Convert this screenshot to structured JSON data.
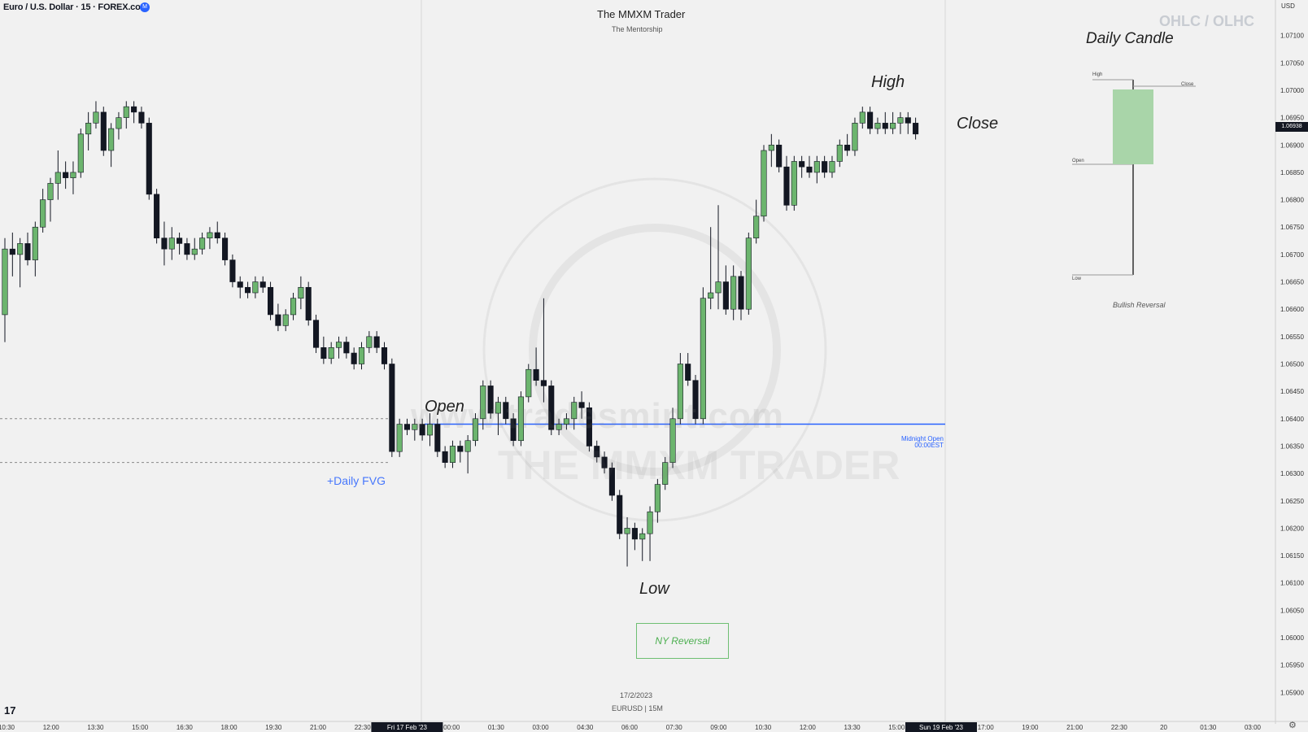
{
  "header": {
    "symbol": "Euro / U.S. Dollar · 15 · FOREX.com",
    "live_badge": "M",
    "brand": "The MMXM Trader",
    "brand_sub": "The Mentorship",
    "ohlc_title": "OHLC / OLHC",
    "daily_candle_title": "Daily Candle",
    "currency": "USD"
  },
  "annotations": {
    "open": "Open",
    "high": "High",
    "low": "Low",
    "close": "Close",
    "daily_fvg": "+Daily FVG",
    "midnight_open_1": "Midnight Open",
    "midnight_open_2": "00:00EST",
    "ny_reversal": "NY Reversal"
  },
  "daily_candle": {
    "high": "High",
    "close": "Close",
    "open": "Open",
    "low": "Low",
    "caption": "Bullish Reversal"
  },
  "footer": {
    "date": "17/2/2023",
    "symbol_tf": "EURUSD | 15M"
  },
  "watermark": {
    "url": "www.tradesmint.com",
    "name": "THE MMXM TRADER"
  },
  "current_price_label": "1.06938",
  "colors": {
    "bull": "#6cb56e",
    "bear": "#131722",
    "midnight_line": "#2962ff",
    "ny_box": "#6fbf73"
  },
  "chart_data": {
    "type": "candlestick",
    "symbol": "EURUSD",
    "interval": "15",
    "ylim": [
      1.0585,
      1.0715
    ],
    "y_ticks": [
      "1.07100",
      "1.07050",
      "1.07000",
      "1.06950",
      "1.06900",
      "1.06850",
      "1.06800",
      "1.06750",
      "1.06700",
      "1.06650",
      "1.06600",
      "1.06550",
      "1.06500",
      "1.06450",
      "1.06400",
      "1.06350",
      "1.06300",
      "1.06250",
      "1.06200",
      "1.06150",
      "1.06100",
      "1.06050",
      "1.06000",
      "1.05950",
      "1.05900"
    ],
    "x_ticks": [
      "10:30",
      "12:00",
      "13:30",
      "15:00",
      "16:30",
      "18:00",
      "19:30",
      "21:00",
      "22:30",
      "Fri 17 Feb '23",
      "00:00",
      "01:30",
      "03:00",
      "04:30",
      "06:00",
      "07:30",
      "09:00",
      "10:30",
      "12:00",
      "13:30",
      "15:00",
      "Sun 19 Feb '23",
      "17:00",
      "19:00",
      "21:00",
      "22:30",
      "20",
      "01:30",
      "03:00"
    ],
    "midnight_open": 1.0639,
    "daily_fvg_level": 1.0632,
    "series": [
      {
        "ohlc": [
          [
            1.0659,
            1.0673,
            1.0654,
            1.0671
          ],
          [
            1.0671,
            1.0674,
            1.0666,
            1.067
          ],
          [
            1.067,
            1.0673,
            1.0664,
            1.0672
          ],
          [
            1.0672,
            1.0674,
            1.0668,
            1.0669
          ],
          [
            1.0669,
            1.0676,
            1.0666,
            1.0675
          ],
          [
            1.0675,
            1.0682,
            1.0674,
            1.068
          ],
          [
            1.068,
            1.0684,
            1.0676,
            1.0683
          ],
          [
            1.0683,
            1.0689,
            1.068,
            1.0685
          ],
          [
            1.0685,
            1.0687,
            1.0682,
            1.0684
          ],
          [
            1.0684,
            1.0687,
            1.0681,
            1.0685
          ],
          [
            1.0685,
            1.0693,
            1.0684,
            1.0692
          ],
          [
            1.0692,
            1.0696,
            1.0689,
            1.0694
          ],
          [
            1.0694,
            1.0698,
            1.0693,
            1.0696
          ],
          [
            1.0696,
            1.0697,
            1.0688,
            1.0689
          ],
          [
            1.0689,
            1.0694,
            1.0686,
            1.0693
          ],
          [
            1.0693,
            1.0696,
            1.0691,
            1.0695
          ],
          [
            1.0695,
            1.0698,
            1.0693,
            1.0697
          ],
          [
            1.0697,
            1.0698,
            1.0694,
            1.0696
          ],
          [
            1.0696,
            1.0697,
            1.0693,
            1.0694
          ],
          [
            1.0694,
            1.0695,
            1.068,
            1.0681
          ],
          [
            1.0681,
            1.0682,
            1.0672,
            1.0673
          ],
          [
            1.0673,
            1.0676,
            1.0668,
            1.0671
          ],
          [
            1.0671,
            1.0675,
            1.0669,
            1.0673
          ],
          [
            1.0673,
            1.0674,
            1.067,
            1.0672
          ],
          [
            1.0672,
            1.0673,
            1.0669,
            1.067
          ],
          [
            1.067,
            1.0673,
            1.0669,
            1.0671
          ],
          [
            1.0671,
            1.0674,
            1.067,
            1.0673
          ],
          [
            1.0673,
            1.0675,
            1.0671,
            1.0674
          ],
          [
            1.0674,
            1.0676,
            1.0672,
            1.0673
          ],
          [
            1.0673,
            1.0674,
            1.0668,
            1.0669
          ],
          [
            1.0669,
            1.067,
            1.0664,
            1.0665
          ],
          [
            1.0665,
            1.0666,
            1.0662,
            1.0664
          ],
          [
            1.0664,
            1.0665,
            1.0662,
            1.0663
          ],
          [
            1.0663,
            1.0666,
            1.0662,
            1.0665
          ],
          [
            1.0665,
            1.0666,
            1.0663,
            1.0664
          ],
          [
            1.0664,
            1.0665,
            1.0658,
            1.0659
          ],
          [
            1.0659,
            1.0661,
            1.0656,
            1.0657
          ],
          [
            1.0657,
            1.066,
            1.0656,
            1.0659
          ],
          [
            1.0659,
            1.0663,
            1.0658,
            1.0662
          ],
          [
            1.0662,
            1.0666,
            1.066,
            1.0664
          ],
          [
            1.0664,
            1.0665,
            1.0657,
            1.0658
          ],
          [
            1.0658,
            1.0659,
            1.0652,
            1.0653
          ],
          [
            1.0653,
            1.0655,
            1.065,
            1.0651
          ],
          [
            1.0651,
            1.0654,
            1.065,
            1.0653
          ],
          [
            1.0653,
            1.0655,
            1.0651,
            1.0654
          ],
          [
            1.0654,
            1.0655,
            1.0651,
            1.0652
          ],
          [
            1.0652,
            1.0653,
            1.0649,
            1.065
          ],
          [
            1.065,
            1.0654,
            1.0649,
            1.0653
          ],
          [
            1.0653,
            1.0656,
            1.0652,
            1.0655
          ],
          [
            1.0655,
            1.0656,
            1.0652,
            1.0653
          ],
          [
            1.0653,
            1.0654,
            1.0649,
            1.065
          ],
          [
            1.065,
            1.0651,
            1.0633,
            1.0634
          ],
          [
            1.0634,
            1.064,
            1.0633,
            1.0639
          ],
          [
            1.0639,
            1.064,
            1.0637,
            1.0638
          ],
          [
            1.0638,
            1.064,
            1.0636,
            1.0639
          ],
          [
            1.0639,
            1.064,
            1.0636,
            1.0637
          ],
          [
            1.0637,
            1.0641,
            1.0635,
            1.0639
          ],
          [
            1.0639,
            1.064,
            1.0633,
            1.0634
          ],
          [
            1.0634,
            1.0635,
            1.0631,
            1.0632
          ],
          [
            1.0632,
            1.0636,
            1.0631,
            1.0635
          ],
          [
            1.0635,
            1.0636,
            1.0632,
            1.0634
          ],
          [
            1.0634,
            1.0637,
            1.063,
            1.0636
          ],
          [
            1.0636,
            1.0641,
            1.0635,
            1.064
          ],
          [
            1.064,
            1.0647,
            1.0638,
            1.0646
          ],
          [
            1.0646,
            1.0647,
            1.064,
            1.0641
          ],
          [
            1.0641,
            1.0644,
            1.0637,
            1.0643
          ],
          [
            1.0643,
            1.0644,
            1.0639,
            1.064
          ],
          [
            1.064,
            1.0641,
            1.0635,
            1.0636
          ],
          [
            1.0636,
            1.0645,
            1.0635,
            1.0644
          ],
          [
            1.0644,
            1.065,
            1.0643,
            1.0649
          ],
          [
            1.0649,
            1.0653,
            1.0646,
            1.0647
          ],
          [
            1.0647,
            1.0662,
            1.0643,
            1.0646
          ],
          [
            1.0646,
            1.0647,
            1.0637,
            1.0638
          ],
          [
            1.0638,
            1.064,
            1.0637,
            1.0639
          ],
          [
            1.0639,
            1.0641,
            1.0638,
            1.064
          ],
          [
            1.064,
            1.0644,
            1.0638,
            1.0643
          ],
          [
            1.0643,
            1.0645,
            1.064,
            1.0642
          ],
          [
            1.0642,
            1.0643,
            1.0634,
            1.0635
          ],
          [
            1.0635,
            1.0636,
            1.0632,
            1.0633
          ],
          [
            1.0633,
            1.0634,
            1.063,
            1.0631
          ],
          [
            1.0631,
            1.0632,
            1.0625,
            1.0626
          ],
          [
            1.0626,
            1.0627,
            1.0618,
            1.0619
          ],
          [
            1.0619,
            1.0622,
            1.0613,
            1.062
          ],
          [
            1.062,
            1.0621,
            1.0616,
            1.0618
          ],
          [
            1.0618,
            1.062,
            1.0614,
            1.0619
          ],
          [
            1.0619,
            1.0624,
            1.0614,
            1.0623
          ],
          [
            1.0623,
            1.0629,
            1.0621,
            1.0628
          ],
          [
            1.0628,
            1.0633,
            1.0627,
            1.0632
          ],
          [
            1.0632,
            1.0642,
            1.0631,
            1.064
          ],
          [
            1.064,
            1.0652,
            1.0639,
            1.065
          ],
          [
            1.065,
            1.0652,
            1.0646,
            1.0647
          ],
          [
            1.0647,
            1.0648,
            1.0639,
            1.064
          ],
          [
            1.064,
            1.0664,
            1.0639,
            1.0662
          ],
          [
            1.0662,
            1.0675,
            1.066,
            1.0663
          ],
          [
            1.0663,
            1.0679,
            1.066,
            1.0665
          ],
          [
            1.0665,
            1.0668,
            1.0659,
            1.066
          ],
          [
            1.066,
            1.0668,
            1.0658,
            1.0666
          ],
          [
            1.0666,
            1.0667,
            1.0658,
            1.066
          ],
          [
            1.066,
            1.0674,
            1.0659,
            1.0673
          ],
          [
            1.0673,
            1.068,
            1.0672,
            1.0677
          ],
          [
            1.0677,
            1.069,
            1.0676,
            1.0689
          ],
          [
            1.0689,
            1.0692,
            1.0686,
            1.069
          ],
          [
            1.069,
            1.0691,
            1.0685,
            1.0686
          ],
          [
            1.0686,
            1.0688,
            1.0678,
            1.0679
          ],
          [
            1.0679,
            1.0688,
            1.0678,
            1.0687
          ],
          [
            1.0687,
            1.0688,
            1.0684,
            1.0686
          ],
          [
            1.0686,
            1.0688,
            1.0684,
            1.0685
          ],
          [
            1.0685,
            1.0688,
            1.0683,
            1.0687
          ],
          [
            1.0687,
            1.0688,
            1.0684,
            1.0685
          ],
          [
            1.0685,
            1.0688,
            1.0684,
            1.0687
          ],
          [
            1.0687,
            1.0691,
            1.0686,
            1.069
          ],
          [
            1.069,
            1.0692,
            1.0688,
            1.0689
          ],
          [
            1.0689,
            1.0695,
            1.0688,
            1.0694
          ],
          [
            1.0694,
            1.0697,
            1.0693,
            1.0696
          ],
          [
            1.0696,
            1.0697,
            1.0692,
            1.0693
          ],
          [
            1.0693,
            1.0695,
            1.0692,
            1.0694
          ],
          [
            1.0694,
            1.0696,
            1.0692,
            1.0693
          ],
          [
            1.0693,
            1.0696,
            1.0692,
            1.0694
          ],
          [
            1.0694,
            1.0696,
            1.0692,
            1.0695
          ],
          [
            1.0695,
            1.0696,
            1.0692,
            1.0694
          ],
          [
            1.0694,
            1.0695,
            1.0691,
            1.0692
          ]
        ]
      }
    ]
  }
}
